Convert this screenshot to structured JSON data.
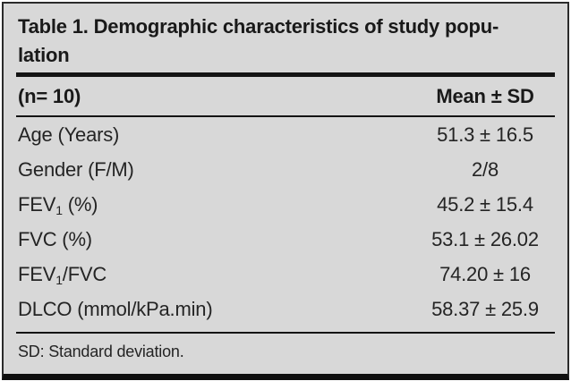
{
  "table": {
    "title": "Table 1. Demographic characteristics of study population",
    "title_lines": [
      "Table 1. Demographic characteristics of study popu-",
      "lation"
    ],
    "header": {
      "label": "(n= 10)",
      "value": "Mean ± SD"
    },
    "rows": [
      {
        "label_pre": "Age (Years)",
        "label_sub": "",
        "label_post": "",
        "value": "51.3 ± 16.5"
      },
      {
        "label_pre": "Gender (F/M)",
        "label_sub": "",
        "label_post": "",
        "value": "2/8"
      },
      {
        "label_pre": "FEV",
        "label_sub": "1",
        "label_post": " (%)",
        "value": "45.2 ± 15.4"
      },
      {
        "label_pre": "FVC (%)",
        "label_sub": "",
        "label_post": "",
        "value": "53.1 ± 26.02"
      },
      {
        "label_pre": "FEV",
        "label_sub": "1",
        "label_post": "/FVC",
        "value": "74.20 ± 16"
      },
      {
        "label_pre": "DLCO (mmol/kPa.min)",
        "label_sub": "",
        "label_post": "",
        "value": "58.37 ± 25.9"
      }
    ],
    "footnote": "SD: Standard deviation.",
    "colors": {
      "table_background": "#d8d8d8",
      "frame_border": "#2b2b2b",
      "bottom_bar": "#0f0f0f",
      "rule": "#141414",
      "text": "#1c1c1c",
      "page_background": "#ffffff"
    }
  }
}
